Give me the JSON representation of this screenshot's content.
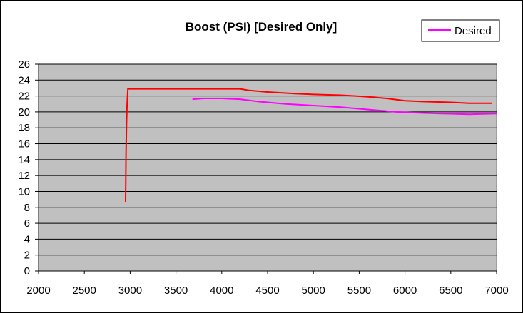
{
  "chart_data": {
    "type": "line",
    "title": "Boost (PSI) [Desired Only]",
    "xlabel": "",
    "ylabel": "",
    "xlim": [
      2000,
      7000
    ],
    "ylim": [
      0,
      26
    ],
    "x_ticks": [
      2000,
      2500,
      3000,
      3500,
      4000,
      4500,
      5000,
      5500,
      6000,
      6500,
      7000
    ],
    "y_ticks": [
      0,
      2,
      4,
      6,
      8,
      10,
      12,
      14,
      16,
      18,
      20,
      22,
      24,
      26
    ],
    "grid": "horizontal",
    "plot_background": "#c0c0c0",
    "legend_position": "top-right",
    "legend": [
      {
        "label": "Desired",
        "color": "#ff00ff"
      }
    ],
    "series": [
      {
        "color": "#ff0000",
        "points": [
          [
            2950,
            8.7
          ],
          [
            2955,
            14.5
          ],
          [
            2960,
            18.5
          ],
          [
            2965,
            20.5
          ],
          [
            2975,
            22.9
          ],
          [
            3500,
            22.9
          ],
          [
            4000,
            22.9
          ],
          [
            4200,
            22.9
          ],
          [
            4300,
            22.7
          ],
          [
            4500,
            22.5
          ],
          [
            4800,
            22.3
          ],
          [
            5000,
            22.2
          ],
          [
            5300,
            22.1
          ],
          [
            5600,
            21.9
          ],
          [
            5800,
            21.7
          ],
          [
            6000,
            21.4
          ],
          [
            6200,
            21.3
          ],
          [
            6500,
            21.2
          ],
          [
            6700,
            21.1
          ],
          [
            6950,
            21.1
          ]
        ]
      },
      {
        "name": "Desired",
        "color": "#ff00ff",
        "points": [
          [
            3680,
            21.6
          ],
          [
            3800,
            21.7
          ],
          [
            4000,
            21.7
          ],
          [
            4200,
            21.6
          ],
          [
            4400,
            21.3
          ],
          [
            4700,
            21.0
          ],
          [
            5000,
            20.8
          ],
          [
            5300,
            20.6
          ],
          [
            5600,
            20.3
          ],
          [
            5900,
            20.0
          ],
          [
            6100,
            19.9
          ],
          [
            6400,
            19.8
          ],
          [
            6700,
            19.7
          ],
          [
            7000,
            19.8
          ]
        ]
      }
    ]
  }
}
